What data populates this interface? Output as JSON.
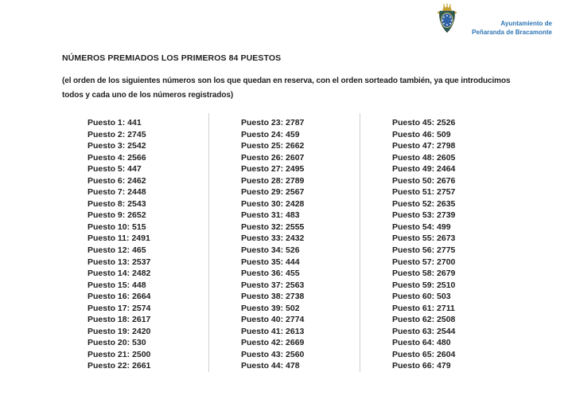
{
  "logo": {
    "org_line1": "Ayuntamiento de",
    "org_line2": "Peñaranda de Bracamonte",
    "text_color": "#2e74b5",
    "crest_icon": "coat-of-arms",
    "crest_colors": {
      "crown": "#c8a233",
      "shield": "#2d5b50",
      "oval": "#2f62a7",
      "stars": "#ffffff",
      "oval_ring": "#d9c47c"
    }
  },
  "document": {
    "title": "NÚMEROS PREMIADOS LOS PRIMEROS 84 PUESTOS",
    "note": "(el orden de los siguientes números son los que quedan en reserva, con el orden sorteado también, ya que introducimos todos y cada uno de los números registrados)",
    "text_color": "#1f1f1f"
  },
  "table": {
    "row_prefix": "Puesto",
    "divider_color": "#d0d0d0",
    "columns": [
      {
        "entries": [
          [
            1,
            441
          ],
          [
            2,
            2745
          ],
          [
            3,
            2542
          ],
          [
            4,
            2566
          ],
          [
            5,
            447
          ],
          [
            6,
            2462
          ],
          [
            7,
            2448
          ],
          [
            8,
            2543
          ],
          [
            9,
            2652
          ],
          [
            10,
            515
          ],
          [
            11,
            2491
          ],
          [
            12,
            465
          ],
          [
            13,
            2537
          ],
          [
            14,
            2482
          ],
          [
            15,
            448
          ],
          [
            16,
            2664
          ],
          [
            17,
            2574
          ],
          [
            18,
            2617
          ],
          [
            19,
            2420
          ],
          [
            20,
            530
          ],
          [
            21,
            2500
          ],
          [
            22,
            2661
          ]
        ]
      },
      {
        "entries": [
          [
            23,
            2787
          ],
          [
            24,
            459
          ],
          [
            25,
            2662
          ],
          [
            26,
            2607
          ],
          [
            27,
            2495
          ],
          [
            28,
            2789
          ],
          [
            29,
            2567
          ],
          [
            30,
            2428
          ],
          [
            31,
            483
          ],
          [
            32,
            2555
          ],
          [
            33,
            2432
          ],
          [
            34,
            526
          ],
          [
            35,
            444
          ],
          [
            36,
            455
          ],
          [
            37,
            2563
          ],
          [
            38,
            2738
          ],
          [
            39,
            502
          ],
          [
            40,
            2774
          ],
          [
            41,
            2613
          ],
          [
            42,
            2669
          ],
          [
            43,
            2560
          ],
          [
            44,
            478
          ]
        ]
      },
      {
        "entries": [
          [
            45,
            2526
          ],
          [
            46,
            509
          ],
          [
            47,
            2798
          ],
          [
            48,
            2605
          ],
          [
            49,
            2464
          ],
          [
            50,
            2676
          ],
          [
            51,
            2757
          ],
          [
            52,
            2635
          ],
          [
            53,
            2739
          ],
          [
            54,
            499
          ],
          [
            55,
            2673
          ],
          [
            56,
            2775
          ],
          [
            57,
            2700
          ],
          [
            58,
            2679
          ],
          [
            59,
            2510
          ],
          [
            60,
            503
          ],
          [
            61,
            2711
          ],
          [
            62,
            2508
          ],
          [
            63,
            2544
          ],
          [
            64,
            480
          ],
          [
            65,
            2604
          ],
          [
            66,
            479
          ]
        ]
      }
    ]
  }
}
